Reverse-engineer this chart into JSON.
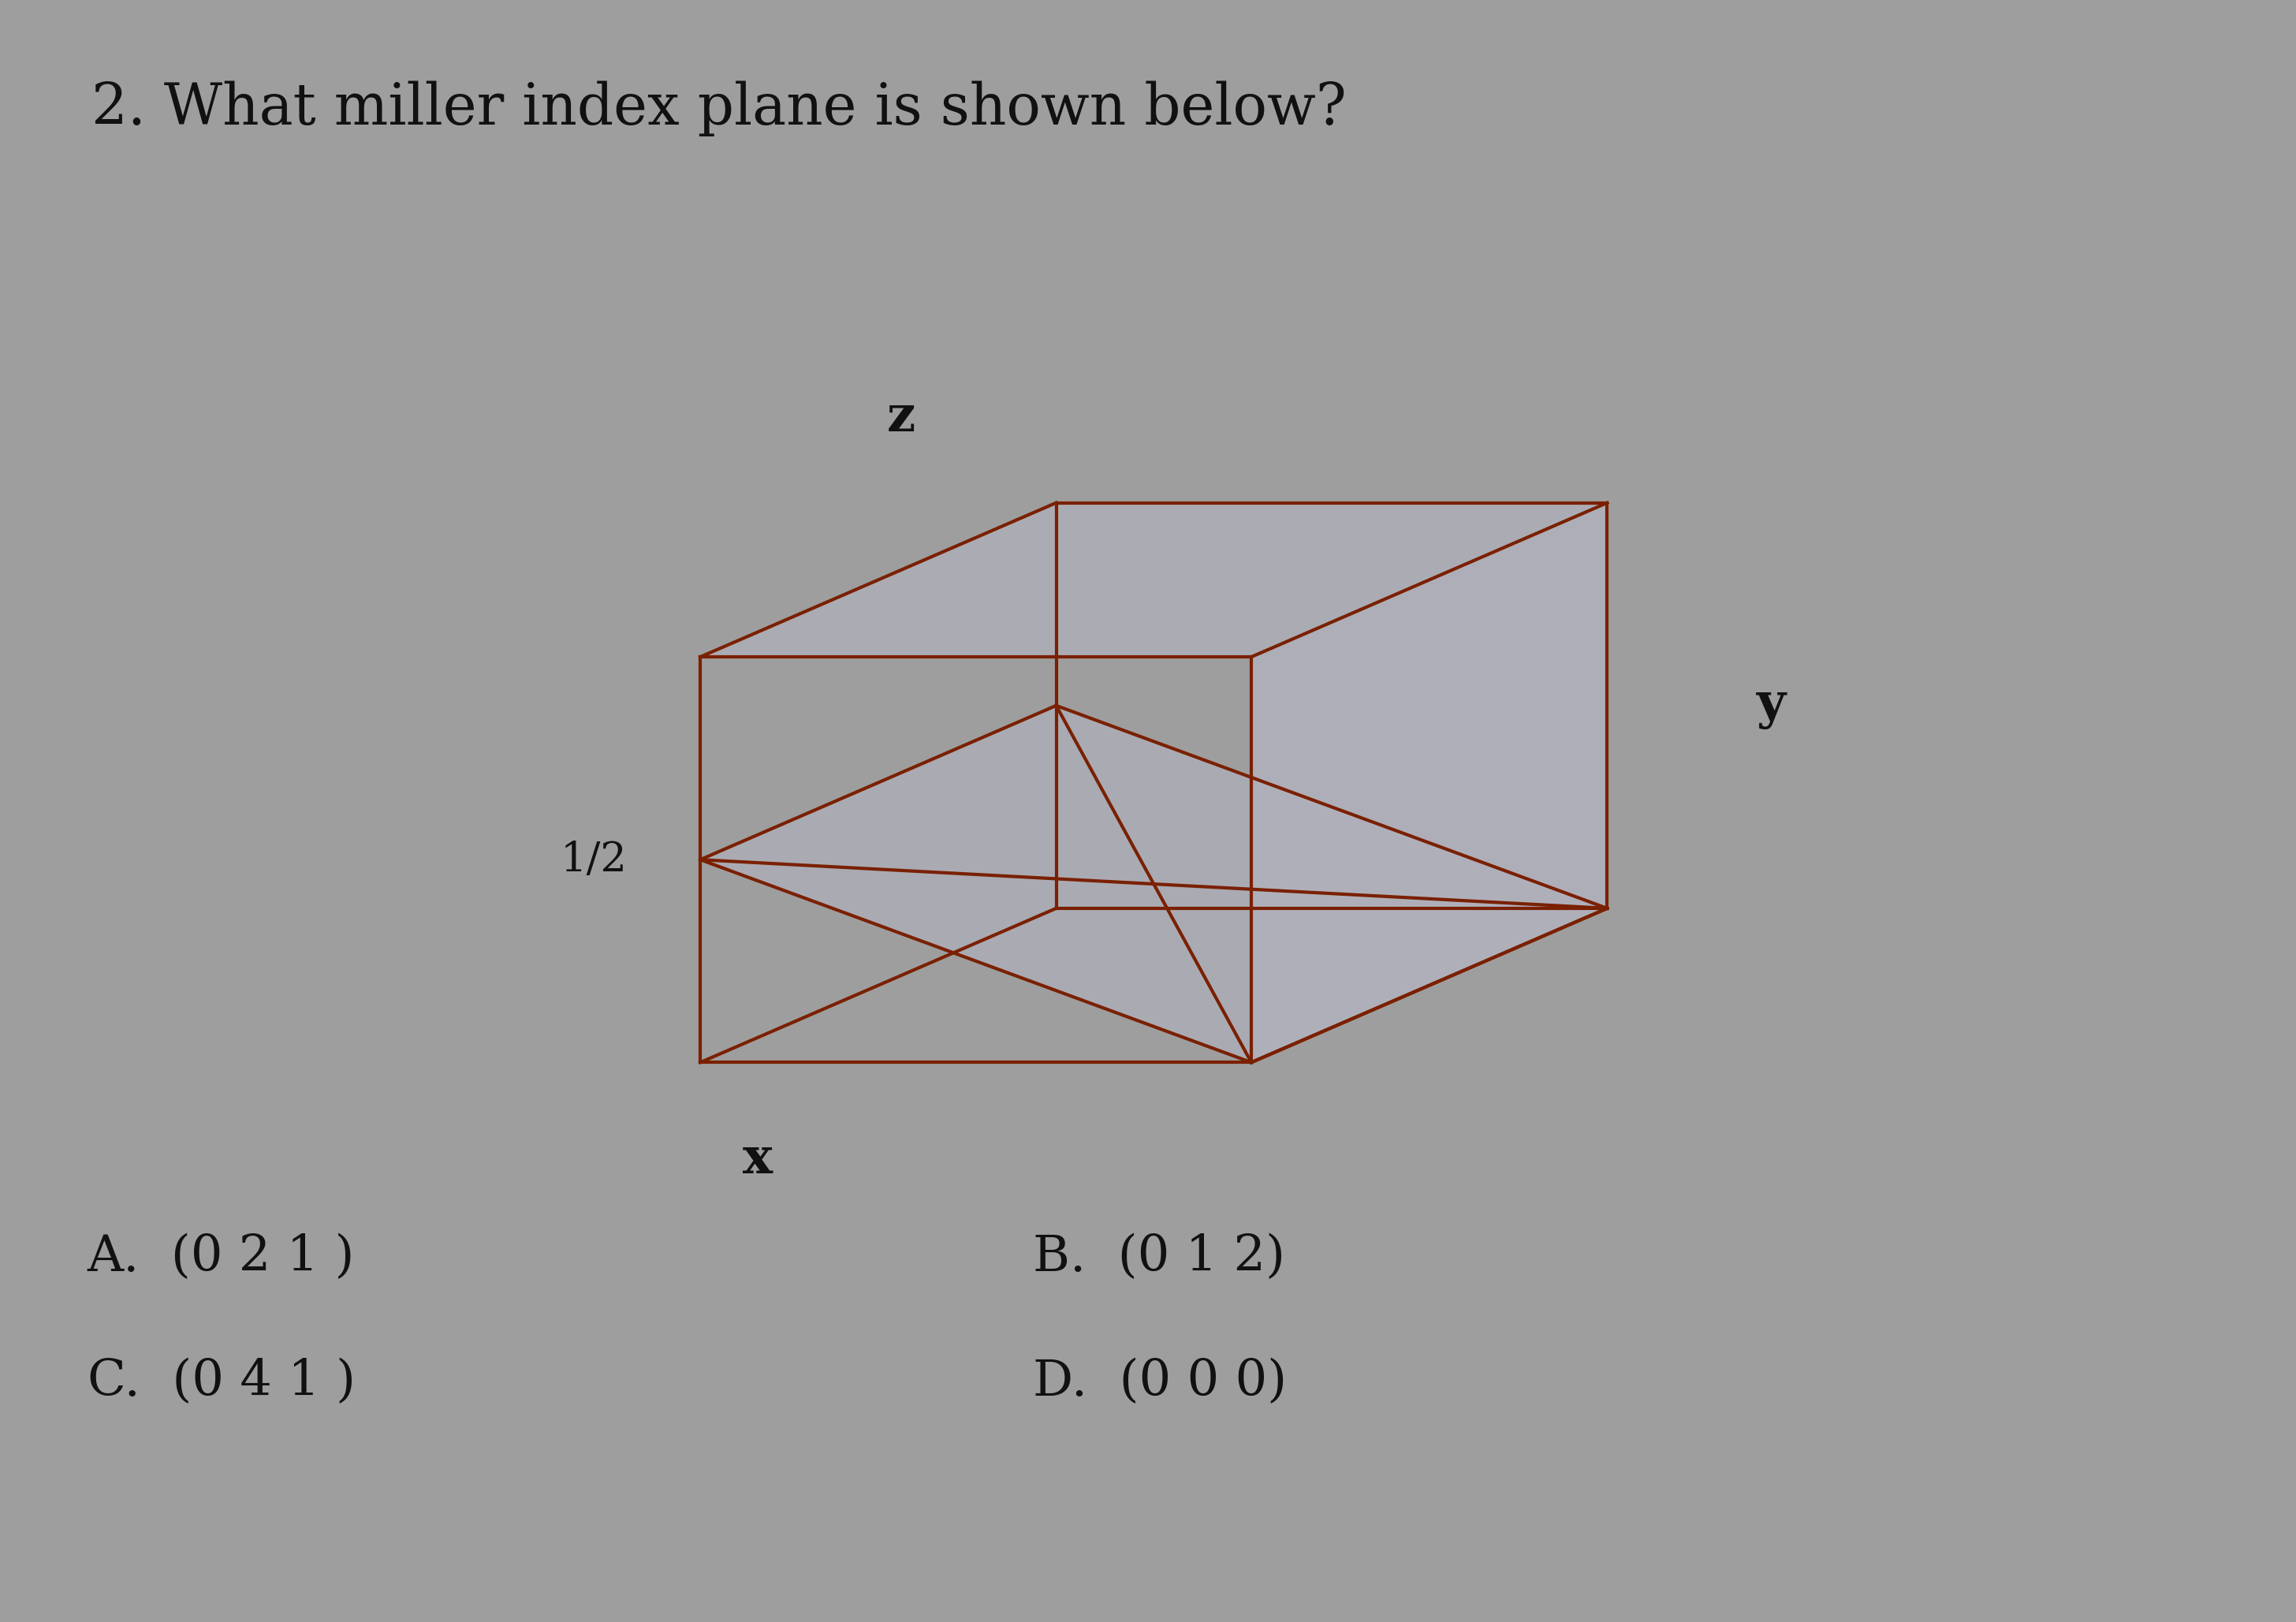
{
  "bg_color": "#9e9e9e",
  "title": "2. What miller index plane is shown below?",
  "title_fontsize": 52,
  "axis_label_z": "z",
  "axis_label_x": "x",
  "axis_label_y": "y",
  "half_label": "1/2",
  "cube_edge_color": "#7a2000",
  "cube_edge_lw": 3.0,
  "shaded_face_color": "#b0b0bc",
  "top_face_color": "#b0b0bc",
  "plane_color": "#b0b0bc",
  "answer_A": "A.  (0 2 1 )",
  "answer_B": "B.  (0 1 2)",
  "answer_C": "C.  (0 4 1 )",
  "answer_D": "D.  (0 0 0)",
  "answer_fontsize": 46,
  "text_color": "#111111"
}
